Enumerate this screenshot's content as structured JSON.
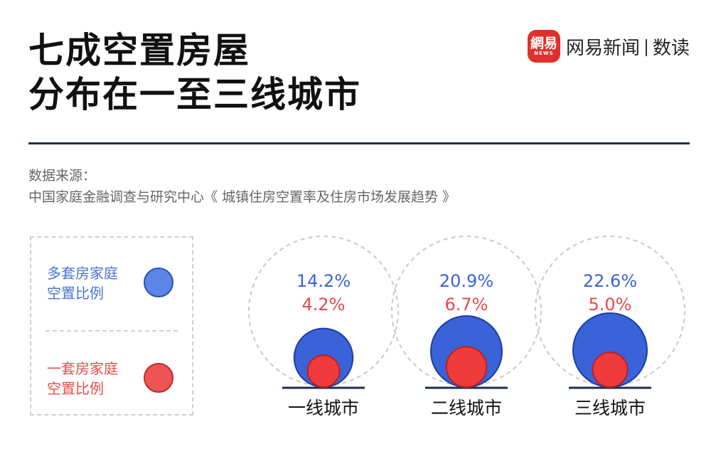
{
  "header": {
    "title_line1": "七成空置房屋",
    "title_line2": "分布在一至三线城市"
  },
  "brand": {
    "logo_glyph": "網易",
    "logo_sub": "NEWS",
    "name": "网易新闻",
    "section": "数读",
    "logo_color": "#e0302b"
  },
  "source": {
    "label": "数据来源：",
    "text": "中国家庭金融调查与研究中心《 城镇住房空置率及住房市场发展趋势 》"
  },
  "legend": {
    "multi_label_line1": "多套房家庭",
    "multi_label_line2": "空置比例",
    "single_label_line1": "一套房家庭",
    "single_label_line2": "空置比例"
  },
  "chart_data": {
    "type": "bubble",
    "categories": [
      "一线城市",
      "二线城市",
      "三线城市"
    ],
    "series": [
      {
        "name": "多套房家庭空置比例",
        "values": [
          14.2,
          20.9,
          22.6
        ],
        "labels": [
          "14.2%",
          "20.9%",
          "22.6%"
        ],
        "color": "#3a62d9",
        "stroke": "#1e3f9e"
      },
      {
        "name": "一套房家庭空置比例",
        "values": [
          4.2,
          6.7,
          5.0
        ],
        "labels": [
          "4.2%",
          "6.7%",
          "5.0%"
        ],
        "color": "#ef3b3b",
        "stroke": "#b82222"
      }
    ],
    "unit": "%"
  }
}
